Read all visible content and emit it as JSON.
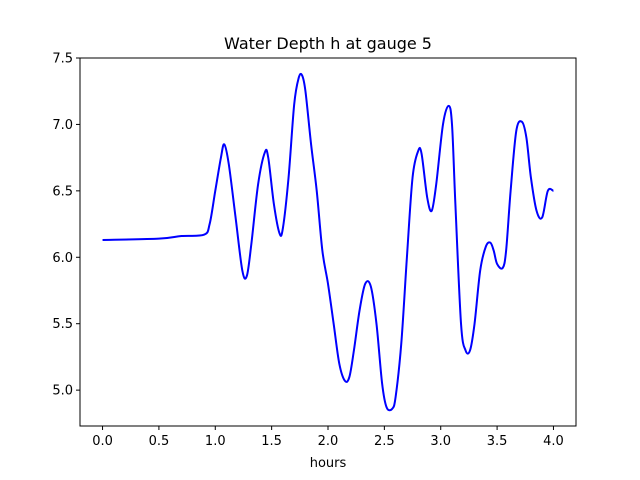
{
  "chart_data": {
    "type": "line",
    "title": "Water Depth h at gauge 5",
    "xlabel": "hours",
    "ylabel": "",
    "xlim": [
      -0.2,
      4.2
    ],
    "ylim": [
      4.73,
      7.5
    ],
    "xticks": [
      0.0,
      0.5,
      1.0,
      1.5,
      2.0,
      2.5,
      3.0,
      3.5,
      4.0
    ],
    "xtick_labels": [
      "0.0",
      "0.5",
      "1.0",
      "1.5",
      "2.0",
      "2.5",
      "3.0",
      "3.5",
      "4.0"
    ],
    "yticks": [
      5.0,
      5.5,
      6.0,
      6.5,
      7.0,
      7.5
    ],
    "ytick_labels": [
      "5.0",
      "5.5",
      "6.0",
      "6.5",
      "7.0",
      "7.5"
    ],
    "grid": false,
    "series": [
      {
        "color": "#0000ff",
        "x": [
          0.0,
          0.5,
          0.7,
          0.9,
          0.95,
          1.0,
          1.05,
          1.08,
          1.12,
          1.18,
          1.24,
          1.28,
          1.32,
          1.38,
          1.44,
          1.47,
          1.52,
          1.57,
          1.6,
          1.65,
          1.7,
          1.74,
          1.77,
          1.8,
          1.85,
          1.9,
          1.95,
          2.0,
          2.05,
          2.1,
          2.15,
          2.19,
          2.23,
          2.28,
          2.33,
          2.38,
          2.43,
          2.48,
          2.52,
          2.57,
          2.6,
          2.65,
          2.7,
          2.75,
          2.8,
          2.83,
          2.88,
          2.92,
          2.96,
          3.02,
          3.07,
          3.1,
          3.13,
          3.18,
          3.22,
          3.26,
          3.3,
          3.35,
          3.4,
          3.44,
          3.47,
          3.5,
          3.55,
          3.58,
          3.62,
          3.67,
          3.72,
          3.76,
          3.8,
          3.85,
          3.9,
          3.95,
          4.0
        ],
        "y": [
          6.13,
          6.14,
          6.16,
          6.17,
          6.25,
          6.5,
          6.75,
          6.85,
          6.7,
          6.3,
          5.9,
          5.86,
          6.1,
          6.55,
          6.79,
          6.75,
          6.4,
          6.18,
          6.22,
          6.6,
          7.15,
          7.35,
          7.37,
          7.25,
          6.85,
          6.5,
          6.05,
          5.8,
          5.5,
          5.2,
          5.07,
          5.1,
          5.3,
          5.6,
          5.8,
          5.78,
          5.5,
          5.05,
          4.87,
          4.86,
          4.95,
          5.35,
          6.0,
          6.6,
          6.8,
          6.78,
          6.45,
          6.35,
          6.55,
          7.0,
          7.14,
          7.0,
          6.4,
          5.5,
          5.3,
          5.3,
          5.5,
          5.9,
          6.08,
          6.11,
          6.05,
          5.95,
          5.92,
          6.05,
          6.5,
          6.95,
          7.02,
          6.9,
          6.6,
          6.35,
          6.3,
          6.5,
          6.5
        ]
      }
    ]
  }
}
